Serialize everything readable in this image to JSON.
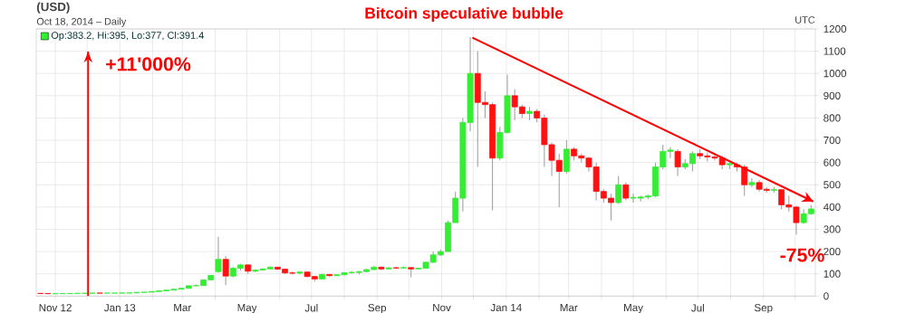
{
  "chart_data": {
    "type": "candlestick",
    "title": "Bitcoin speculative bubble",
    "annotations": [
      "(USD)",
      "Oct 18, 2014 – Daily",
      "UTC",
      "Op:383.2, Hi:395, Lo:377, Cl:391.4",
      "-75%"
    ],
    "x": [
      "2012-10-18",
      "2012-10-25",
      "2012-11-01",
      "2012-11-08",
      "2012-11-15",
      "2012-11-22",
      "2012-11-29",
      "2012-12-06",
      "2012-12-13",
      "2012-12-20",
      "2012-12-27",
      "2013-01-03",
      "2013-01-10",
      "2013-01-17",
      "2013-01-24",
      "2013-01-31",
      "2013-02-07",
      "2013-02-14",
      "2013-02-21",
      "2013-02-28",
      "2013-03-07",
      "2013-03-14",
      "2013-03-21",
      "2013-03-28",
      "2013-04-04",
      "2013-04-11",
      "2013-04-18",
      "2013-04-25",
      "2013-05-02",
      "2013-05-09",
      "2013-05-16",
      "2013-05-23",
      "2013-05-30",
      "2013-06-06",
      "2013-06-13",
      "2013-06-20",
      "2013-06-27",
      "2013-07-04",
      "2013-07-11",
      "2013-07-18",
      "2013-07-25",
      "2013-08-01",
      "2013-08-08",
      "2013-08-15",
      "2013-08-22",
      "2013-08-29",
      "2013-09-05",
      "2013-09-12",
      "2013-09-19",
      "2013-09-26",
      "2013-10-03",
      "2013-10-10",
      "2013-10-17",
      "2013-10-24",
      "2013-10-31",
      "2013-11-07",
      "2013-11-14",
      "2013-11-21",
      "2013-11-28",
      "2013-12-05",
      "2013-12-12",
      "2013-12-19",
      "2013-12-26",
      "2014-01-02",
      "2014-01-09",
      "2014-01-16",
      "2014-01-23",
      "2014-01-30",
      "2014-02-06",
      "2014-02-13",
      "2014-02-20",
      "2014-02-27",
      "2014-03-06",
      "2014-03-13",
      "2014-03-20",
      "2014-03-27",
      "2014-04-03",
      "2014-04-10",
      "2014-04-17",
      "2014-04-24",
      "2014-05-01",
      "2014-05-08",
      "2014-05-15",
      "2014-05-22",
      "2014-05-29",
      "2014-06-05",
      "2014-06-12",
      "2014-06-19",
      "2014-06-26",
      "2014-07-03",
      "2014-07-10",
      "2014-07-17",
      "2014-07-24",
      "2014-07-31",
      "2014-08-07",
      "2014-08-14",
      "2014-08-21",
      "2014-08-28",
      "2014-09-04",
      "2014-09-11",
      "2014-09-18",
      "2014-09-25",
      "2014-10-02",
      "2014-10-09",
      "2014-10-16"
    ],
    "ohlc": [
      [
        12,
        12.2,
        11.5,
        11.8
      ],
      [
        11.8,
        11.9,
        10.5,
        10.9
      ],
      [
        10.9,
        11.1,
        10.6,
        11
      ],
      [
        11,
        11.3,
        10.8,
        11.1
      ],
      [
        11.1,
        11.9,
        11,
        11.8
      ],
      [
        11.8,
        12.5,
        11.6,
        12.3
      ],
      [
        12.3,
        13,
        12.1,
        12.8
      ],
      [
        12.8,
        13.6,
        12.7,
        13.4
      ],
      [
        13.4,
        13.8,
        13,
        13.3
      ],
      [
        13.3,
        13.5,
        13.2,
        13.4
      ],
      [
        13.4,
        13.6,
        13.3,
        13.5
      ],
      [
        13.5,
        14,
        13.3,
        13.9
      ],
      [
        13.9,
        15,
        13.8,
        14.5
      ],
      [
        14.5,
        17,
        14.4,
        16.9
      ],
      [
        16.9,
        18,
        16.5,
        17.6
      ],
      [
        17.6,
        21,
        17.5,
        20.6
      ],
      [
        20.6,
        24,
        20.4,
        23.9
      ],
      [
        23.9,
        27,
        23.5,
        27
      ],
      [
        27,
        31,
        26.5,
        30.9
      ],
      [
        30.9,
        36,
        30.5,
        35
      ],
      [
        35,
        47,
        35,
        46.5
      ],
      [
        46.5,
        52,
        45,
        47
      ],
      [
        47,
        75,
        47,
        73
      ],
      [
        73,
        95,
        72,
        93
      ],
      [
        110,
        266,
        105,
        165
      ],
      [
        165,
        180,
        50,
        90
      ],
      [
        90,
        130,
        85,
        125
      ],
      [
        125,
        145,
        115,
        140
      ],
      [
        140,
        142,
        100,
        112
      ],
      [
        112,
        120,
        108,
        117
      ],
      [
        117,
        124,
        115,
        122
      ],
      [
        122,
        133,
        120,
        130
      ],
      [
        130,
        131,
        118,
        121
      ],
      [
        121,
        123,
        100,
        104
      ],
      [
        104,
        110,
        97,
        103
      ],
      [
        103,
        112,
        98,
        108
      ],
      [
        108,
        110,
        85,
        88
      ],
      [
        88,
        90,
        65,
        77
      ],
      [
        77,
        100,
        75,
        97
      ],
      [
        97,
        98,
        87,
        92
      ],
      [
        92,
        98,
        90,
        96
      ],
      [
        96,
        106,
        94,
        105
      ],
      [
        105,
        112,
        101,
        107
      ],
      [
        106,
        112,
        98,
        110
      ],
      [
        110,
        122,
        108,
        119
      ],
      [
        119,
        135,
        118,
        130
      ],
      [
        130,
        132,
        116,
        122
      ],
      [
        122,
        130,
        120,
        127
      ],
      [
        127,
        132,
        123,
        126
      ],
      [
        126,
        133,
        124,
        128
      ],
      [
        128,
        130,
        85,
        122
      ],
      [
        122,
        128,
        120,
        125
      ],
      [
        125,
        156,
        124,
        152
      ],
      [
        152,
        200,
        148,
        185
      ],
      [
        185,
        210,
        180,
        200
      ],
      [
        200,
        340,
        200,
        330
      ],
      [
        330,
        470,
        330,
        440
      ],
      [
        440,
        800,
        380,
        780
      ],
      [
        780,
        1163,
        740,
        1000
      ],
      [
        1000,
        1100,
        580,
        870
      ],
      [
        870,
        920,
        800,
        860
      ],
      [
        860,
        870,
        385,
        620
      ],
      [
        620,
        760,
        610,
        735
      ],
      [
        735,
        995,
        730,
        900
      ],
      [
        900,
        930,
        790,
        850
      ],
      [
        850,
        860,
        800,
        820
      ],
      [
        820,
        850,
        790,
        830
      ],
      [
        830,
        840,
        780,
        800
      ],
      [
        800,
        815,
        580,
        680
      ],
      [
        680,
        690,
        540,
        610
      ],
      [
        610,
        640,
        400,
        560
      ],
      [
        560,
        700,
        550,
        660
      ],
      [
        660,
        670,
        610,
        630
      ],
      [
        630,
        640,
        600,
        620
      ],
      [
        620,
        625,
        560,
        580
      ],
      [
        580,
        600,
        430,
        470
      ],
      [
        470,
        480,
        420,
        440
      ],
      [
        440,
        460,
        340,
        420
      ],
      [
        420,
        540,
        415,
        500
      ],
      [
        500,
        510,
        430,
        440
      ],
      [
        440,
        460,
        420,
        443
      ],
      [
        440,
        450,
        425,
        445
      ],
      [
        445,
        455,
        435,
        450
      ],
      [
        450,
        600,
        445,
        580
      ],
      [
        580,
        680,
        570,
        650
      ],
      [
        650,
        670,
        620,
        656
      ],
      [
        650,
        660,
        540,
        580
      ],
      [
        580,
        615,
        570,
        595
      ],
      [
        595,
        650,
        560,
        640
      ],
      [
        640,
        660,
        615,
        630
      ],
      [
        630,
        645,
        605,
        625
      ],
      [
        625,
        640,
        610,
        620
      ],
      [
        620,
        630,
        570,
        590
      ],
      [
        590,
        600,
        570,
        595
      ],
      [
        590,
        600,
        560,
        580
      ],
      [
        580,
        590,
        450,
        500
      ],
      [
        500,
        530,
        490,
        510
      ],
      [
        510,
        520,
        470,
        480
      ],
      [
        480,
        490,
        465,
        475
      ],
      [
        475,
        490,
        465,
        478
      ],
      [
        478,
        480,
        390,
        410
      ],
      [
        410,
        450,
        380,
        400
      ],
      [
        400,
        405,
        277,
        330
      ],
      [
        330,
        390,
        325,
        370
      ],
      [
        370,
        410,
        365,
        391.4
      ]
    ],
    "series": [
      {
        "type": "line",
        "x": [
          "2013-11-30",
          "2014-10-18"
        ],
        "values": [
          1161,
          425
        ],
        "color": "#ff0000"
      }
    ],
    "ref_lines": [
      {
        "axis": "x",
        "value": "2012-12-02",
        "label": "+11'000%",
        "color": "#ff0000"
      }
    ],
    "xlim": [
      "2012-10-14",
      "2014-10-20"
    ],
    "xticks": [
      {
        "value": "2012-11-01",
        "label": "Nov 12"
      },
      {
        "value": "2012-12-01",
        "label": null
      },
      {
        "value": "2013-01-01",
        "label": "Jan 13"
      },
      {
        "value": "2013-02-01",
        "label": null
      },
      {
        "value": "2013-03-01",
        "label": "Mar"
      },
      {
        "value": "2013-04-01",
        "label": null
      },
      {
        "value": "2013-05-01",
        "label": "May"
      },
      {
        "value": "2013-06-01",
        "label": null
      },
      {
        "value": "2013-07-01",
        "label": "Jul"
      },
      {
        "value": "2013-08-01",
        "label": null
      },
      {
        "value": "2013-09-01",
        "label": "Sep"
      },
      {
        "value": "2013-10-01",
        "label": null
      },
      {
        "value": "2013-11-01",
        "label": "Nov"
      },
      {
        "value": "2013-12-01",
        "label": null
      },
      {
        "value": "2014-01-01",
        "label": "Jan 14"
      },
      {
        "value": "2014-02-01",
        "label": null
      },
      {
        "value": "2014-03-01",
        "label": "Mar"
      },
      {
        "value": "2014-04-01",
        "label": null
      },
      {
        "value": "2014-05-01",
        "label": "May"
      },
      {
        "value": "2014-06-01",
        "label": null
      },
      {
        "value": "2014-07-01",
        "label": "Jul"
      },
      {
        "value": "2014-08-01",
        "label": null
      },
      {
        "value": "2014-09-01",
        "label": "Sep"
      },
      {
        "value": "2014-10-01",
        "label": null
      }
    ],
    "ylim": [
      0,
      1200
    ],
    "yticks": [
      0,
      100,
      200,
      300,
      400,
      500,
      600,
      700,
      800,
      900,
      1000,
      1100,
      1200
    ],
    "grid": true
  }
}
